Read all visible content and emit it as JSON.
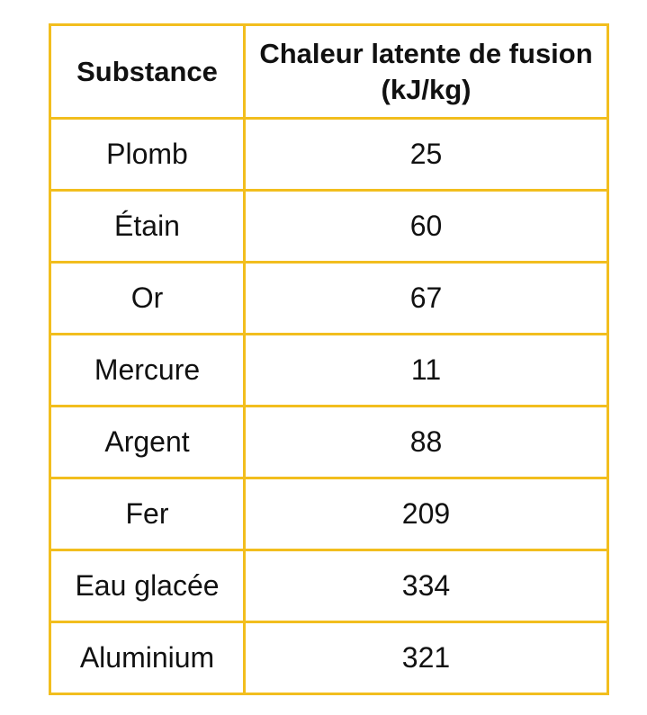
{
  "table": {
    "headers": [
      "Substance",
      "Chaleur latente de fusion (kJ/kg)"
    ],
    "rows": [
      [
        "Plomb",
        "25"
      ],
      [
        "Étain",
        "60"
      ],
      [
        "Or",
        "67"
      ],
      [
        "Mercure",
        "11"
      ],
      [
        "Argent",
        "88"
      ],
      [
        "Fer",
        "209"
      ],
      [
        "Eau glacée",
        "334"
      ],
      [
        "Aluminium",
        "321"
      ]
    ],
    "border_color": "#F2BE1E"
  },
  "chart_data": {
    "type": "table",
    "columns": [
      "Substance",
      "Chaleur latente de fusion (kJ/kg)"
    ],
    "categories": [
      "Plomb",
      "Étain",
      "Or",
      "Mercure",
      "Argent",
      "Fer",
      "Eau glacée",
      "Aluminium"
    ],
    "values": [
      25,
      60,
      67,
      11,
      88,
      209,
      334,
      321
    ]
  }
}
